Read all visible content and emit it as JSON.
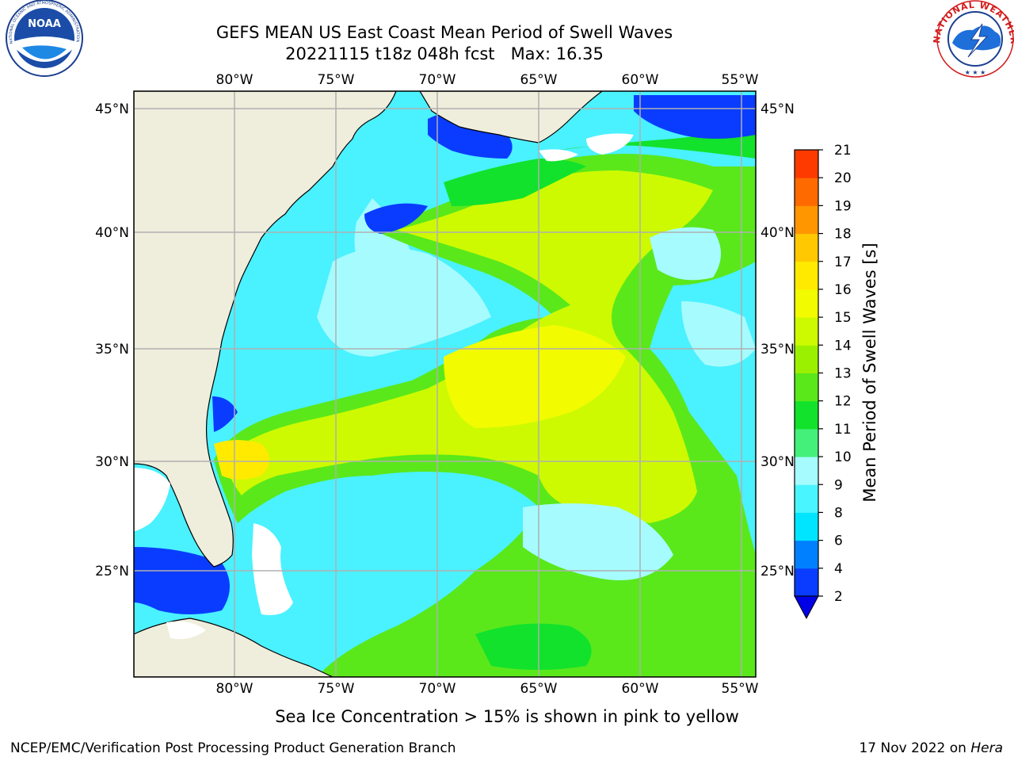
{
  "header": {
    "title_line1": "GEFS MEAN US East Coast Mean Period of Swell Waves",
    "title_line2": "20221115 t18z 048h fcst   Max: 16.35"
  },
  "logos": {
    "noaa_text": "NOAA",
    "noaa_ring_text": "NATIONAL OCEANIC AND ATMOSPHERIC ADMINISTRATION · U.S. DEPARTMENT OF COMMERCE",
    "nws_ring_text": "NATIONAL WEATHER SERVICE"
  },
  "map": {
    "lon_labels": [
      "80°W",
      "75°W",
      "70°W",
      "65°W",
      "60°W",
      "55°W"
    ],
    "lat_labels": [
      "45°N",
      "40°N",
      "35°N",
      "30°N",
      "25°N"
    ],
    "colors": {
      "land": "#efeddc",
      "grid": "#b0b0b0",
      "coast": "#000000",
      "no_data": "#ffffff"
    }
  },
  "colorbar": {
    "label": "Mean Period of Swell Waves [s]",
    "ticks": [
      "2",
      "4",
      "6",
      "8",
      "9",
      "10",
      "11",
      "12",
      "13",
      "14",
      "15",
      "16",
      "17",
      "18",
      "19",
      "20",
      "21"
    ],
    "colors": [
      "#0a3cff",
      "#0080ff",
      "#00e5ff",
      "#49f5ff",
      "#a6fbff",
      "#44f07a",
      "#12e22b",
      "#5ae81b",
      "#9bf000",
      "#cdfa00",
      "#f2fb00",
      "#ffea00",
      "#ffc800",
      "#ff9600",
      "#ff6a00",
      "#ff3a00",
      "#ff0000"
    ],
    "under_color": "#0000e6"
  },
  "footer": {
    "note": "Sea Ice Concentration > 15% is shown in pink to yellow",
    "credit": "NCEP/EMC/Verification Post Processing Product Generation Branch",
    "date": "17 Nov 2022 on ",
    "machine": "Hera"
  }
}
